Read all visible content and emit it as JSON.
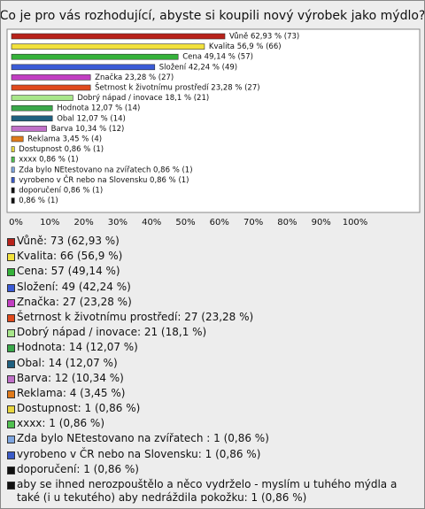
{
  "chart_data": {
    "type": "bar",
    "orientation": "horizontal",
    "title": "Co je pro vás rozhodující, abyste si koupili nový výrobek jako mýdlo?",
    "categories": [
      "Vůně: 73 (62,93 %)",
      "Kvalita: 66 (56,9 %)",
      "Cena: 57 (49,14 %)",
      "Složení: 49 (42,24 %)",
      "Značka: 27 (23,28 %)",
      "Šetrnost k životnímu prostředí: 27 (23,28 %)",
      "Dobrý nápad / inovace: 21 (18,1 %)",
      "Hodnota: 14 (12,07 %)",
      "Obal: 14 (12,07 %)",
      "Barva: 12 (10,34 %)",
      "Reklama: 4 (3,45 %)",
      "Dostupnost: 1 (0,86 %)",
      "xxxx: 1 (0,86 %)",
      "Zda bylo NEtestovano na zvířatech : 1 (0,86 %)",
      "vyrobeno v ČR nebo na Slovensku: 1 (0,86 %)",
      "doporučení: 1 (0,86 %)",
      "aby se ihned nerozpouštělo a něco vydrželo - myslím u tuhého mýdla a také (i u tekutého) aby nedráždila pokožku: 1 (0,86 %)"
    ],
    "values": [
      62.93,
      56.9,
      49.14,
      42.24,
      23.28,
      23.28,
      18.1,
      12.07,
      12.07,
      10.34,
      3.45,
      0.86,
      0.86,
      0.86,
      0.86,
      0.86,
      0.86
    ],
    "counts": [
      73,
      66,
      57,
      49,
      27,
      27,
      21,
      14,
      14,
      12,
      4,
      1,
      1,
      1,
      1,
      1,
      1
    ],
    "value_labels": [
      "Vůně 62,93 % (73)",
      "Kvalita 56,9 % (66)",
      "Cena 49,14 % (57)",
      "Složení 42,24 % (49)",
      "Značka 23,28 % (27)",
      "Šetrnost k životnímu prostředí 23,28 % (27)",
      "Dobrý nápad / inovace 18,1 % (21)",
      "Hodnota 12,07 % (14)",
      "Obal 12,07 % (14)",
      "Barva 10,34 % (12)",
      "Reklama 3,45 % (4)",
      "Dostupnost 0,86 % (1)",
      "xxxx 0,86 % (1)",
      "Zda bylo NEtestovano na zvířatech  0,86 % (1)",
      "vyrobeno v ČR nebo na Slovensku 0,86 % (1)",
      "doporučení 0,86 % (1)",
      "0,86 % (1)"
    ],
    "colors": [
      "#b8221a",
      "#f2e13c",
      "#35b23a",
      "#3b5bd6",
      "#c23ec2",
      "#e04a1c",
      "#a8e68a",
      "#3aa84a",
      "#1f6080",
      "#c070c8",
      "#e07a1a",
      "#e8d640",
      "#50c050",
      "#7fa6e0",
      "#3a5bc8",
      "#111111",
      "#111111"
    ],
    "xlim": [
      0,
      100
    ],
    "xticks": [
      {
        "value": 0,
        "label": "0%"
      },
      {
        "value": 10,
        "label": "10%"
      },
      {
        "value": 20,
        "label": "20%"
      },
      {
        "value": 30,
        "label": "30%"
      },
      {
        "value": 40,
        "label": "40%"
      },
      {
        "value": 50,
        "label": "50%"
      },
      {
        "value": 60,
        "label": "60%"
      },
      {
        "value": 70,
        "label": "70%"
      },
      {
        "value": 80,
        "label": "80%"
      },
      {
        "value": 90,
        "label": "90%"
      },
      {
        "value": 100,
        "label": "100%"
      }
    ],
    "grid": false
  }
}
